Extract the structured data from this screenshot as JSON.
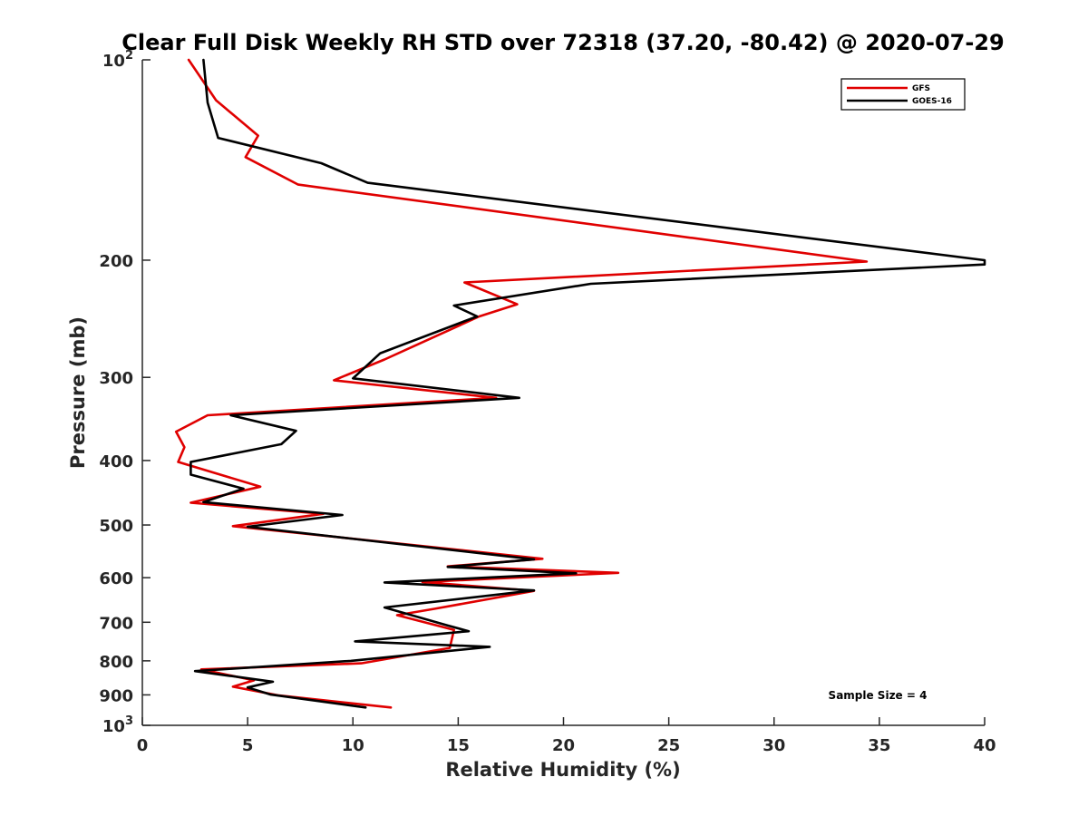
{
  "chart_data": {
    "type": "line",
    "title": "Clear Full Disk Weekly RH STD over 72318 (37.20, -80.42) @ 2020-07-29",
    "xlabel": "Relative Humidity (%)",
    "ylabel": "Pressure (mb)",
    "xlim": [
      0,
      40
    ],
    "ylim": [
      100,
      1000
    ],
    "y_scale": "log",
    "y_reversed": true,
    "x_ticks": [
      0,
      5,
      10,
      15,
      20,
      25,
      30,
      35,
      40
    ],
    "x_tick_labels": [
      "0",
      "5",
      "10",
      "15",
      "20",
      "25",
      "30",
      "35",
      "40"
    ],
    "y_ticks": [
      {
        "value": 100,
        "base": "10",
        "exp": "2"
      },
      {
        "value": 200,
        "label": "200"
      },
      {
        "value": 300,
        "label": "300"
      },
      {
        "value": 400,
        "label": "400"
      },
      {
        "value": 500,
        "label": "500"
      },
      {
        "value": 600,
        "label": "600"
      },
      {
        "value": 700,
        "label": "700"
      },
      {
        "value": 800,
        "label": "800"
      },
      {
        "value": 900,
        "label": "900"
      },
      {
        "value": 1000,
        "base": "10",
        "exp": "3"
      }
    ],
    "grid": false,
    "legend_position": "top-right",
    "annotation": "Sample Size = 4",
    "series": [
      {
        "name": "GFS",
        "color": "#e00000",
        "points": [
          [
            2.2,
            100
          ],
          [
            3.5,
            115
          ],
          [
            5.5,
            130
          ],
          [
            4.9,
            140
          ],
          [
            7.4,
            154
          ],
          [
            34.4,
            201
          ],
          [
            15.3,
            216
          ],
          [
            17.8,
            233
          ],
          [
            16.0,
            243
          ],
          [
            11.5,
            282
          ],
          [
            9.1,
            303
          ],
          [
            16.8,
            322
          ],
          [
            3.1,
            342
          ],
          [
            1.6,
            362
          ],
          [
            2.0,
            382
          ],
          [
            1.7,
            402
          ],
          [
            5.6,
            438
          ],
          [
            2.3,
            463
          ],
          [
            8.6,
            481
          ],
          [
            4.3,
            502
          ],
          [
            9.2,
            521
          ],
          [
            19.0,
            562
          ],
          [
            14.5,
            577
          ],
          [
            22.6,
            590
          ],
          [
            13.3,
            609
          ],
          [
            18.6,
            628
          ],
          [
            13.9,
            668
          ],
          [
            12.1,
            683
          ],
          [
            14.8,
            719
          ],
          [
            14.6,
            765
          ],
          [
            10.4,
            807
          ],
          [
            2.8,
            824
          ],
          [
            5.3,
            856
          ],
          [
            4.3,
            875
          ],
          [
            6.5,
            902
          ],
          [
            11.8,
            940
          ]
        ]
      },
      {
        "name": "GOES-16",
        "color": "#000000",
        "points": [
          [
            2.9,
            100
          ],
          [
            3.1,
            116
          ],
          [
            3.6,
            131
          ],
          [
            8.5,
            143
          ],
          [
            10.7,
            153
          ],
          [
            40.0,
            200
          ],
          [
            40.0,
            203
          ],
          [
            21.3,
            217
          ],
          [
            14.8,
            234
          ],
          [
            15.9,
            243
          ],
          [
            11.3,
            276
          ],
          [
            10.0,
            301
          ],
          [
            17.9,
            322
          ],
          [
            4.2,
            342
          ],
          [
            7.3,
            361
          ],
          [
            6.6,
            378
          ],
          [
            2.3,
            402
          ],
          [
            2.3,
            420
          ],
          [
            4.8,
            441
          ],
          [
            2.9,
            462
          ],
          [
            9.5,
            483
          ],
          [
            5.0,
            503
          ],
          [
            9.9,
            524
          ],
          [
            18.6,
            563
          ],
          [
            14.5,
            578
          ],
          [
            20.6,
            591
          ],
          [
            11.5,
            610
          ],
          [
            18.6,
            627
          ],
          [
            11.5,
            665
          ],
          [
            14.5,
            708
          ],
          [
            15.5,
            722
          ],
          [
            10.1,
            748
          ],
          [
            16.5,
            762
          ],
          [
            9.9,
            800
          ],
          [
            2.5,
            829
          ],
          [
            6.2,
            860
          ],
          [
            5.0,
            877
          ],
          [
            6.1,
            899
          ],
          [
            10.6,
            940
          ]
        ]
      }
    ]
  }
}
